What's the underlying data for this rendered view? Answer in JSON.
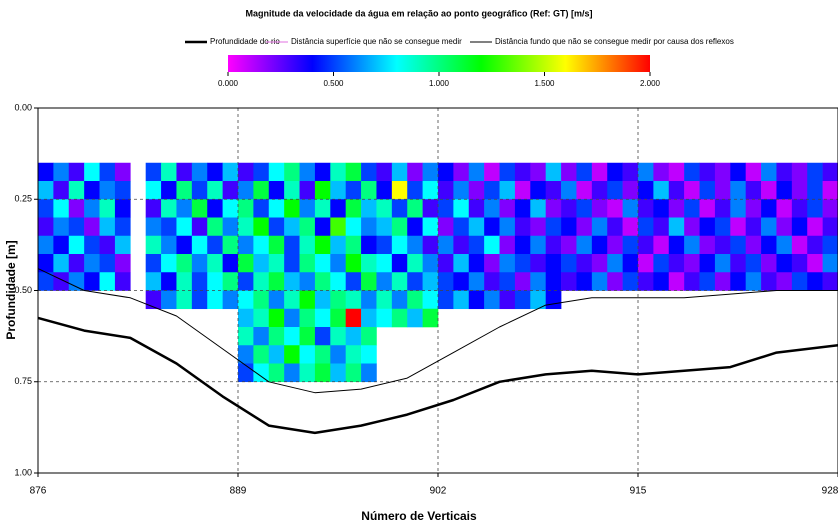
{
  "chart_data": {
    "type": "heatmap",
    "title": "Magnitude da velocidade da água em relação ao ponto geográfico (Ref: GT) [m/s]",
    "xlabel": "Número de Verticais",
    "ylabel": "Profundidade [m]",
    "xlim": [
      876,
      928
    ],
    "xticks": [
      876,
      889,
      902,
      915,
      928
    ],
    "ylim": [
      0,
      1
    ],
    "y_reversed": true,
    "yticks": [
      {
        "value": 0,
        "label": "0.00"
      },
      {
        "value": 0.25,
        "label": "0.25"
      },
      {
        "value": 0.5,
        "label": "0.50"
      },
      {
        "value": 0.75,
        "label": "0.75"
      },
      {
        "value": 1,
        "label": "1.00"
      }
    ],
    "grid": true,
    "clim": [
      0,
      2
    ],
    "colorscale": [
      "#ff00ff",
      "#0000ff",
      "#00ffff",
      "#00ff00",
      "#ffff00",
      "#ff0000"
    ],
    "cticks": [
      {
        "value": 0,
        "label": "0.000"
      },
      {
        "value": 0.5,
        "label": "0.500"
      },
      {
        "value": 1,
        "label": "1.000"
      },
      {
        "value": 1.5,
        "label": "1.500"
      },
      {
        "value": 2,
        "label": "2.000"
      }
    ],
    "x_edges": [
      876,
      877,
      878,
      879,
      880,
      881,
      882,
      883,
      884,
      885,
      886,
      887,
      888,
      889,
      890,
      891,
      892,
      893,
      894,
      895,
      896,
      897,
      898,
      899,
      900,
      901,
      902,
      903,
      904,
      905,
      906,
      907,
      908,
      909,
      910,
      911,
      912,
      913,
      914,
      915,
      916,
      917,
      918,
      919,
      920,
      921,
      922,
      923,
      924,
      925,
      926,
      927,
      928
    ],
    "y_edges": [
      0.15,
      0.2,
      0.25,
      0.3,
      0.35,
      0.4,
      0.45,
      0.5,
      0.55,
      0.6,
      0.65,
      0.7,
      0.75
    ],
    "z": [
      [
        0.4,
        0.6,
        0.3,
        0.8,
        0.5,
        0.2,
        null,
        0.5,
        0.9,
        0.3,
        0.6,
        0.4,
        0.7,
        0.3,
        0.5,
        0.8,
        1.0,
        0.6,
        0.4,
        0.9,
        1.1,
        0.5,
        0.3,
        0.7,
        0.2,
        0.6,
        0.4,
        0.2,
        0.6,
        0.1,
        0.5,
        0.3,
        0.2,
        0.7,
        0.2,
        0.5,
        0.1,
        0.4,
        0.3,
        0.6,
        0.2,
        0.1,
        0.5,
        0.3,
        0.2,
        0.4,
        0.1,
        0.6,
        0.3,
        0.2,
        0.5,
        0.3
      ],
      [
        0.7,
        0.3,
        0.9,
        0.4,
        0.6,
        0.5,
        null,
        0.8,
        0.4,
        1.0,
        0.5,
        0.9,
        0.3,
        0.6,
        1.1,
        0.4,
        0.9,
        0.3,
        1.2,
        0.7,
        0.5,
        1.0,
        0.4,
        1.6,
        0.5,
        0.8,
        0.3,
        0.6,
        0.2,
        0.5,
        0.7,
        0.1,
        0.4,
        0.3,
        0.6,
        0.1,
        0.3,
        0.5,
        0.2,
        0.4,
        0.7,
        0.3,
        0.1,
        0.5,
        0.2,
        0.6,
        0.3,
        0.1,
        0.4,
        0.2,
        0.5,
        0.1
      ],
      [
        0.5,
        0.8,
        0.2,
        0.6,
        0.9,
        0.4,
        null,
        0.3,
        0.9,
        0.6,
        1.1,
        0.4,
        0.8,
        1.0,
        0.5,
        0.8,
        1.2,
        0.6,
        0.9,
        0.4,
        1.1,
        0.7,
        0.9,
        0.5,
        1.0,
        0.3,
        0.5,
        0.8,
        0.3,
        0.6,
        0.2,
        0.4,
        0.7,
        0.2,
        0.3,
        0.5,
        0.2,
        0.1,
        0.6,
        0.3,
        0.4,
        0.2,
        0.5,
        0.1,
        0.3,
        0.6,
        0.2,
        0.4,
        0.1,
        0.3,
        0.5,
        0.2
      ],
      [
        0.3,
        0.6,
        0.5,
        0.2,
        0.7,
        0.5,
        null,
        0.6,
        0.5,
        0.8,
        0.3,
        1.0,
        0.6,
        0.9,
        1.2,
        0.5,
        0.7,
        1.0,
        0.4,
        1.3,
        0.8,
        0.6,
        0.7,
        1.0,
        0.4,
        0.8,
        0.2,
        0.5,
        0.7,
        0.4,
        0.6,
        0.3,
        0.2,
        0.5,
        0.4,
        0.2,
        0.6,
        0.3,
        0.1,
        0.5,
        0.3,
        0.7,
        0.2,
        0.4,
        0.5,
        0.1,
        0.3,
        0.6,
        0.2,
        0.4,
        0.1,
        0.3
      ],
      [
        0.6,
        0.4,
        0.8,
        0.5,
        0.3,
        0.7,
        null,
        0.9,
        0.6,
        0.4,
        0.8,
        0.5,
        1.0,
        0.6,
        0.8,
        1.1,
        0.5,
        0.9,
        1.2,
        0.7,
        1.0,
        0.4,
        0.5,
        0.8,
        0.6,
        0.3,
        0.6,
        0.3,
        0.5,
        0.8,
        0.2,
        0.4,
        0.6,
        0.3,
        0.2,
        0.6,
        0.4,
        0.2,
        0.5,
        0.3,
        0.1,
        0.4,
        0.6,
        0.2,
        0.3,
        0.5,
        0.2,
        0.4,
        0.6,
        0.1,
        0.3,
        0.5
      ],
      [
        0.4,
        0.7,
        0.3,
        0.6,
        0.5,
        0.2,
        null,
        0.5,
        0.8,
        1.0,
        0.6,
        0.9,
        0.4,
        1.1,
        0.7,
        0.9,
        0.5,
        1.0,
        0.8,
        0.6,
        1.2,
        0.9,
        0.8,
        0.4,
        0.9,
        0.6,
        0.3,
        0.7,
        0.4,
        0.2,
        0.6,
        0.5,
        0.3,
        0.4,
        0.5,
        0.3,
        0.2,
        0.6,
        0.4,
        0.1,
        0.5,
        0.3,
        0.2,
        0.4,
        0.6,
        0.3,
        0.5,
        0.2,
        0.4,
        0.3,
        0.1,
        0.6
      ],
      [
        0.5,
        0.3,
        0.6,
        0.4,
        0.8,
        0.3,
        null,
        0.7,
        0.4,
        0.9,
        0.5,
        0.8,
        1.0,
        0.5,
        0.9,
        1.1,
        0.7,
        0.6,
        1.0,
        0.8,
        0.5,
        1.1,
        0.6,
        0.9,
        0.5,
        0.7,
        0.5,
        0.4,
        0.6,
        0.3,
        0.5,
        0.2,
        0.6,
        0.4,
        0.3,
        0.4,
        0.6,
        0.2,
        0.5,
        0.3,
        0.4,
        0.1,
        0.3,
        0.5,
        0.2,
        0.4,
        0.6,
        0.3,
        0.2,
        0.5,
        0.4,
        0.3
      ],
      [
        null,
        null,
        null,
        null,
        null,
        null,
        null,
        0.3,
        0.6,
        0.9,
        0.5,
        0.8,
        0.6,
        0.8,
        1.0,
        0.6,
        0.9,
        1.2,
        0.7,
        1.0,
        0.9,
        0.6,
        0.9,
        0.6,
        1.0,
        0.8,
        0.5,
        0.7,
        0.4,
        0.6,
        0.3,
        0.5,
        0.7,
        0.4,
        null,
        null,
        null,
        null,
        null,
        null,
        null,
        null,
        null,
        null,
        null,
        null,
        null,
        null,
        null,
        null,
        null,
        null
      ],
      [
        null,
        null,
        null,
        null,
        null,
        null,
        null,
        null,
        null,
        null,
        null,
        null,
        null,
        0.7,
        0.9,
        1.2,
        0.6,
        1.0,
        0.8,
        1.1,
        2.0,
        0.7,
        0.8,
        1.0,
        0.7,
        1.1,
        null,
        null,
        null,
        null,
        null,
        null,
        null,
        null,
        null,
        null,
        null,
        null,
        null,
        null,
        null,
        null,
        null,
        null,
        null,
        null,
        null,
        null,
        null,
        null,
        null,
        null
      ],
      [
        null,
        null,
        null,
        null,
        null,
        null,
        null,
        null,
        null,
        null,
        null,
        null,
        null,
        0.9,
        0.6,
        1.0,
        0.8,
        1.1,
        0.5,
        0.9,
        0.7,
        1.0,
        null,
        null,
        null,
        null,
        null,
        null,
        null,
        null,
        null,
        null,
        null,
        null,
        null,
        null,
        null,
        null,
        null,
        null,
        null,
        null,
        null,
        null,
        null,
        null,
        null,
        null,
        null,
        null,
        null,
        null
      ],
      [
        null,
        null,
        null,
        null,
        null,
        null,
        null,
        null,
        null,
        null,
        null,
        null,
        null,
        0.6,
        1.0,
        0.7,
        1.2,
        0.8,
        1.0,
        0.6,
        0.9,
        0.8,
        null,
        null,
        null,
        null,
        null,
        null,
        null,
        null,
        null,
        null,
        null,
        null,
        null,
        null,
        null,
        null,
        null,
        null,
        null,
        null,
        null,
        null,
        null,
        null,
        null,
        null,
        null,
        null,
        null,
        null
      ],
      [
        null,
        null,
        null,
        null,
        null,
        null,
        null,
        null,
        null,
        null,
        null,
        null,
        null,
        0.5,
        0.8,
        1.0,
        0.6,
        0.9,
        1.1,
        0.7,
        1.0,
        0.6,
        null,
        null,
        null,
        null,
        null,
        null,
        null,
        null,
        null,
        null,
        null,
        null,
        null,
        null,
        null,
        null,
        null,
        null,
        null,
        null,
        null,
        null,
        null,
        null,
        null,
        null,
        null,
        null,
        null,
        null
      ]
    ],
    "line_x": [
      876,
      879,
      882,
      885,
      888,
      891,
      894,
      897,
      900,
      903,
      906,
      909,
      912,
      915,
      918,
      921,
      924,
      928
    ],
    "series": [
      {
        "name": "Profundidade do rio",
        "color": "#000000",
        "width": 2.5,
        "values": [
          0.575,
          0.61,
          0.63,
          0.7,
          0.79,
          0.87,
          0.89,
          0.87,
          0.84,
          0.8,
          0.75,
          0.73,
          0.72,
          0.73,
          0.72,
          0.71,
          0.67,
          0.65
        ]
      },
      {
        "name": "Distância superfície que não se consegue medir",
        "color": "#e070e0",
        "width": 1,
        "values": [
          0,
          0,
          0,
          0,
          0,
          0,
          0,
          0,
          0,
          0,
          0,
          0,
          0,
          0,
          0,
          0,
          0,
          0
        ]
      },
      {
        "name": "Distância fundo que não se consegue medir por causa dos reflexos",
        "color": "#000000",
        "width": 1,
        "values": [
          0.44,
          0.5,
          0.52,
          0.57,
          0.66,
          0.75,
          0.78,
          0.77,
          0.74,
          0.67,
          0.6,
          0.54,
          0.52,
          0.52,
          0.52,
          0.51,
          0.5,
          0.5
        ]
      }
    ]
  }
}
